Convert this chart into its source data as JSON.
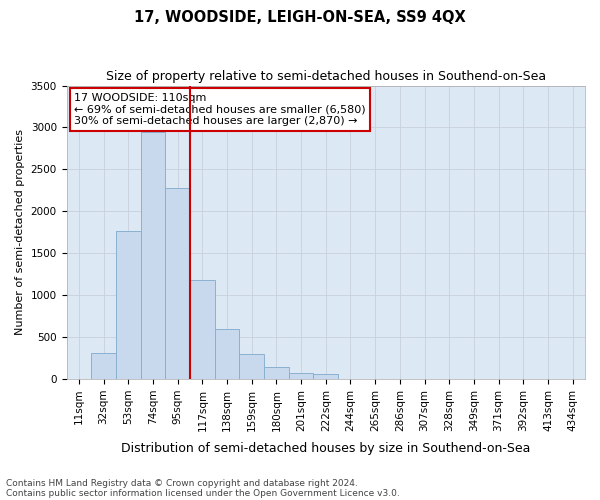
{
  "title": "17, WOODSIDE, LEIGH-ON-SEA, SS9 4QX",
  "subtitle": "Size of property relative to semi-detached houses in Southend-on-Sea",
  "xlabel": "Distribution of semi-detached houses by size in Southend-on-Sea",
  "ylabel": "Number of semi-detached properties",
  "footnote1": "Contains HM Land Registry data © Crown copyright and database right 2024.",
  "footnote2": "Contains public sector information licensed under the Open Government Licence v3.0.",
  "annotation_title": "17 WOODSIDE: 110sqm",
  "annotation_line1": "← 69% of semi-detached houses are smaller (6,580)",
  "annotation_line2": "30% of semi-detached houses are larger (2,870) →",
  "bin_labels": [
    "11sqm",
    "32sqm",
    "53sqm",
    "74sqm",
    "95sqm",
    "117sqm",
    "138sqm",
    "159sqm",
    "180sqm",
    "201sqm",
    "222sqm",
    "244sqm",
    "265sqm",
    "286sqm",
    "307sqm",
    "328sqm",
    "349sqm",
    "371sqm",
    "392sqm",
    "413sqm",
    "434sqm"
  ],
  "bar_values": [
    5,
    310,
    1760,
    2950,
    2280,
    1180,
    600,
    300,
    140,
    75,
    55,
    0,
    0,
    0,
    0,
    0,
    0,
    0,
    0,
    0,
    0
  ],
  "bar_color": "#c8d9ee",
  "bar_edge_color": "#8ab0d0",
  "vline_color": "#cc0000",
  "vline_bin_index": 5,
  "ylim_max": 3500,
  "yticks": [
    0,
    500,
    1000,
    1500,
    2000,
    2500,
    3000,
    3500
  ],
  "grid_color": "#c8d0dc",
  "background_color": "#dde8f5",
  "title_fontsize": 10.5,
  "subtitle_fontsize": 9,
  "ylabel_fontsize": 8,
  "xlabel_fontsize": 9,
  "tick_fontsize": 7.5,
  "annotation_fontsize": 8,
  "footnote_fontsize": 6.5
}
